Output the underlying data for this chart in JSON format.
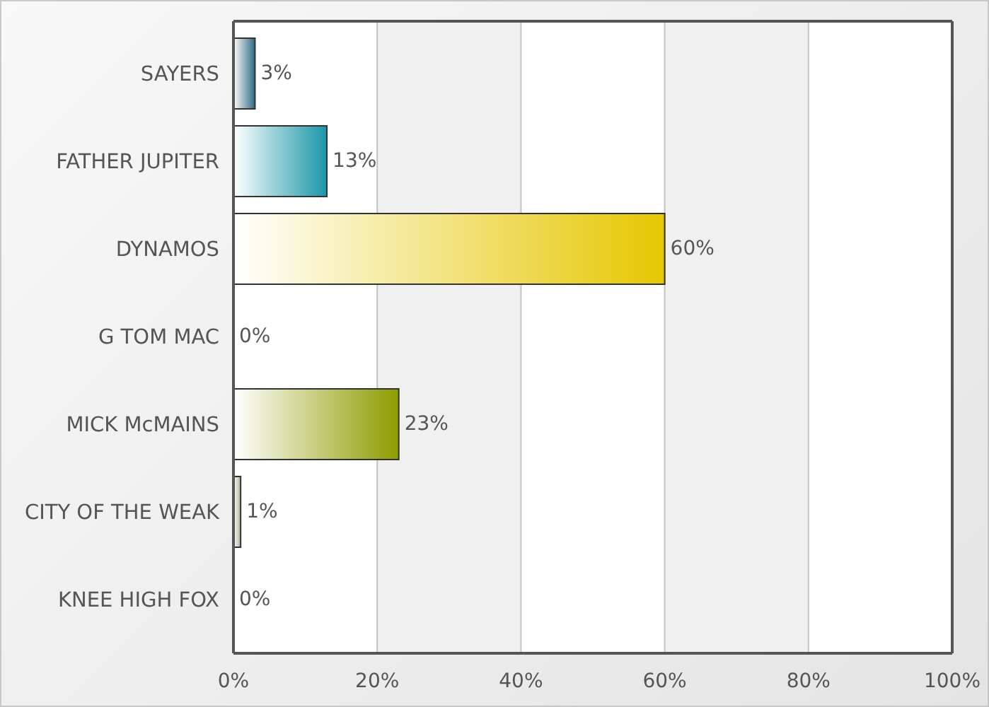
{
  "chart_data": {
    "type": "bar",
    "orientation": "horizontal",
    "categories": [
      "SAYERS",
      "FATHER JUPITER",
      "DYNAMOS",
      "G TOM MAC",
      "MICK McMAINS",
      "CITY OF THE WEAK",
      "KNEE HIGH FOX"
    ],
    "values": [
      3,
      13,
      60,
      0,
      23,
      1,
      0
    ],
    "colors": [
      "#2e6a80",
      "#1a96a8",
      "#e6c700",
      null,
      "#8e9c00",
      "#b5b59a",
      null
    ],
    "value_labels": [
      "3%",
      "13%",
      "60%",
      "0%",
      "23%",
      "1%",
      "0%"
    ],
    "xlim": [
      0,
      100
    ],
    "xticks": [
      {
        "value": 0,
        "label": "0%"
      },
      {
        "value": 20,
        "label": "20%"
      },
      {
        "value": 40,
        "label": "40%"
      },
      {
        "value": 60,
        "label": "60%"
      },
      {
        "value": 80,
        "label": "80%"
      },
      {
        "value": 100,
        "label": "100%"
      }
    ],
    "grid": "x"
  }
}
